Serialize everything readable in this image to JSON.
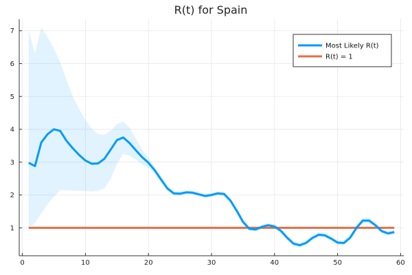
{
  "chart_data": {
    "type": "line",
    "title": "R(t) for Spain",
    "xlabel": "",
    "ylabel": "",
    "xlim": [
      -0.5,
      60.5
    ],
    "ylim": [
      0.15,
      7.35
    ],
    "x_ticks": [
      0,
      10,
      20,
      30,
      40,
      50,
      60
    ],
    "y_ticks": [
      1,
      2,
      3,
      4,
      5,
      6,
      7
    ],
    "grid": true,
    "legend_position": "top-right",
    "series": [
      {
        "name": "Most Likely R(t)",
        "color": "#009af9",
        "x": [
          1,
          2,
          3,
          4,
          5,
          6,
          7,
          8,
          9,
          10,
          11,
          12,
          13,
          14,
          15,
          16,
          17,
          18,
          19,
          20,
          21,
          22,
          23,
          24,
          25,
          26,
          27,
          28,
          29,
          30,
          31,
          32,
          33,
          34,
          35,
          36,
          37,
          38,
          39,
          40,
          41,
          42,
          43,
          44,
          45,
          46,
          47,
          48,
          49,
          50,
          51,
          52,
          53,
          54,
          55,
          56,
          57,
          58,
          59
        ],
        "y": [
          2.98,
          2.88,
          3.6,
          3.85,
          4.0,
          3.95,
          3.65,
          3.42,
          3.22,
          3.05,
          2.95,
          2.96,
          3.1,
          3.38,
          3.67,
          3.75,
          3.58,
          3.36,
          3.15,
          2.98,
          2.75,
          2.47,
          2.2,
          2.05,
          2.04,
          2.08,
          2.07,
          2.02,
          1.97,
          2.0,
          2.05,
          2.03,
          1.83,
          1.52,
          1.18,
          0.97,
          0.95,
          1.03,
          1.08,
          1.04,
          0.91,
          0.7,
          0.52,
          0.47,
          0.54,
          0.69,
          0.79,
          0.77,
          0.67,
          0.55,
          0.54,
          0.7,
          1.0,
          1.22,
          1.22,
          1.08,
          0.9,
          0.83,
          0.87
        ],
        "lower": [
          1.0,
          1.15,
          1.45,
          1.72,
          1.95,
          2.15,
          2.14,
          2.13,
          2.13,
          2.12,
          2.11,
          2.13,
          2.2,
          2.5,
          2.95,
          3.25,
          3.2,
          3.08,
          2.93,
          2.83,
          2.63,
          2.37,
          2.12,
          1.98,
          1.97,
          2.02,
          2.01,
          1.96,
          1.91,
          1.94,
          1.98,
          1.96,
          1.76,
          1.44,
          1.1,
          0.9,
          0.88,
          0.96,
          1.01,
          0.97,
          0.84,
          0.63,
          0.44,
          0.4,
          0.47,
          0.62,
          0.72,
          0.7,
          0.6,
          0.48,
          0.47,
          0.62,
          0.92,
          1.13,
          1.13,
          1.0,
          0.83,
          0.76,
          0.8
        ],
        "upper": [
          7.0,
          6.3,
          7.1,
          6.8,
          6.45,
          6.05,
          5.5,
          5.0,
          4.62,
          4.28,
          4.02,
          3.85,
          3.83,
          3.95,
          4.15,
          4.24,
          4.05,
          3.72,
          3.38,
          3.12,
          2.87,
          2.58,
          2.29,
          2.13,
          2.11,
          2.15,
          2.13,
          2.08,
          2.03,
          2.06,
          2.12,
          2.1,
          1.9,
          1.6,
          1.27,
          1.05,
          1.02,
          1.1,
          1.15,
          1.11,
          0.98,
          0.77,
          0.6,
          0.55,
          0.62,
          0.77,
          0.87,
          0.85,
          0.75,
          0.63,
          0.62,
          0.79,
          1.09,
          1.31,
          1.31,
          1.17,
          0.98,
          0.91,
          0.95
        ]
      },
      {
        "name": "R(t) = 1",
        "color": "#e26f46",
        "x": [
          1,
          59
        ],
        "y": [
          1,
          1
        ]
      }
    ]
  }
}
